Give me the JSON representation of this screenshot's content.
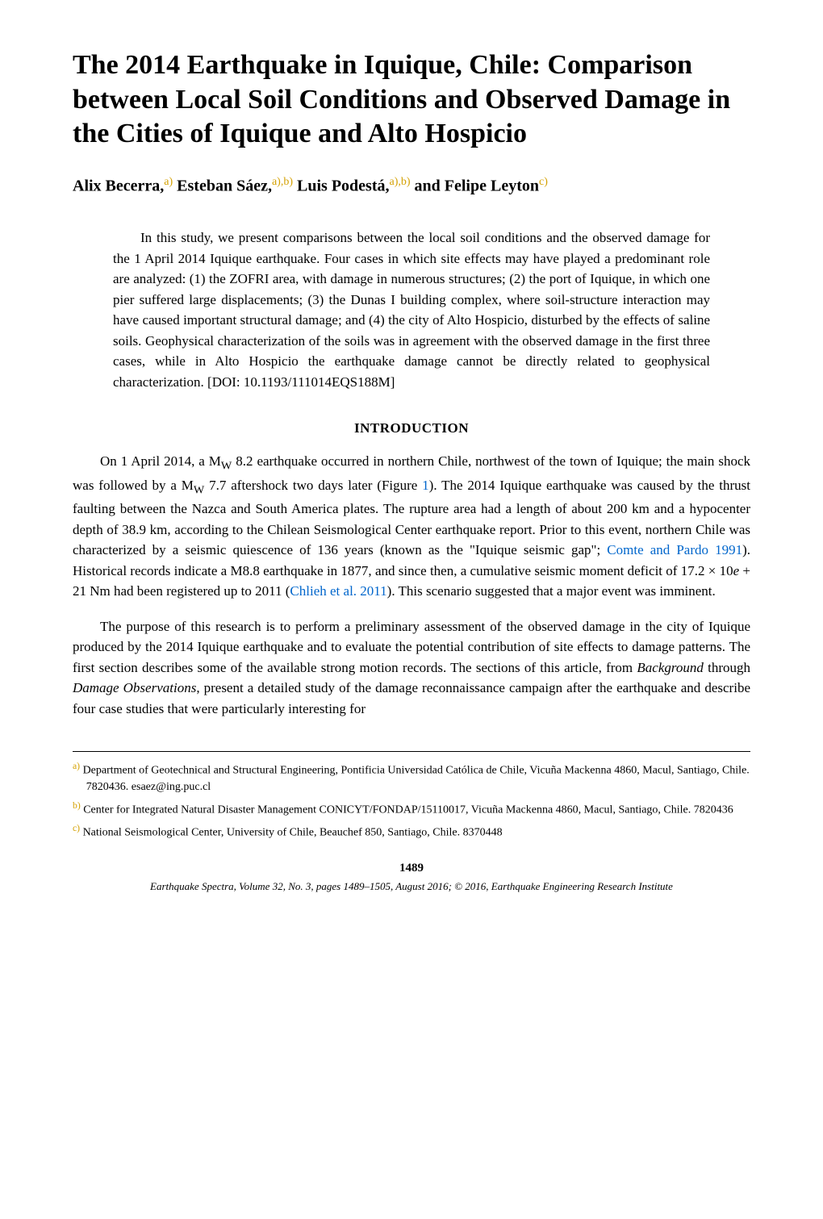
{
  "title": "The 2014 Earthquake in Iquique, Chile: Comparison between Local Soil Conditions and Observed Damage in the Cities of Iquique and Alto Hospicio",
  "authors": {
    "a1_name": "Alix Becerra,",
    "a1_aff": "a)",
    "a2_name": " Esteban Sáez,",
    "a2_aff": "a),b)",
    "a3_name": " Luis Podestá,",
    "a3_aff": "a),b)",
    "a4_pre": " and ",
    "a4_name": "Felipe Leyton",
    "a4_aff": "c)"
  },
  "abstract": "In this study, we present comparisons between the local soil conditions and the observed damage for the 1 April 2014 Iquique earthquake. Four cases in which site effects may have played a predominant role are analyzed: (1) the ZOFRI area, with damage in numerous structures; (2) the port of Iquique, in which one pier suffered large displacements; (3) the Dunas I building complex, where soil-structure interaction may have caused important structural damage; and (4) the city of Alto Hospicio, disturbed by the effects of saline soils. Geophysical characterization of the soils was in agreement with the observed damage in the first three cases, while in Alto Hospicio the earthquake damage cannot be directly related to geophysical characterization. [DOI: 10.1193/111014EQS188M]",
  "section_heading": "INTRODUCTION",
  "para1_pre": "On 1 April 2014, a M",
  "para1_sub1": "W",
  "para1_mid1": " 8.2 earthquake occurred in northern Chile, northwest of the town of Iquique; the main shock was followed by a M",
  "para1_sub2": "W",
  "para1_mid2": " 7.7 aftershock two days later (Figure ",
  "para1_fig": "1",
  "para1_mid3": "). The 2014 Iquique earthquake was caused by the thrust faulting between the Nazca and South America plates. The rupture area had a length of about 200 km and a hypocenter depth of 38.9 km, according to the Chilean Seismological Center earthquake report. Prior to this event, northern Chile was characterized by a seismic quiescence of 136 years (known as the \"Iquique seismic gap\"; ",
  "para1_ref1": "Comte and Pardo 1991",
  "para1_mid4": "). Historical records indicate a M8.8 earthquake in 1877, and since then, a cumulative seismic moment deficit of 17.2 × 10",
  "para1_exp": "e",
  "para1_mid5": " + 21 Nm had been registered up to 2011 (",
  "para1_ref2": "Chlieh et al. 2011",
  "para1_end": "). This scenario suggested that a major event was imminent.",
  "para2_pre": "The purpose of this research is to perform a preliminary assessment of the observed damage in the city of Iquique produced by the 2014 Iquique earthquake and to evaluate the potential contribution of site effects to damage patterns. The first section describes some of the available strong motion records. The sections of this article, from ",
  "para2_i1": "Background",
  "para2_mid": " through ",
  "para2_i2": "Damage Observations",
  "para2_end": ", present a detailed study of the damage reconnaissance campaign after the earthquake and describe four case studies that were particularly interesting for",
  "footnotes": {
    "a_mark": "a)",
    "a_text": " Department of Geotechnical and Structural Engineering, Pontificia Universidad Católica de Chile, Vicuña Mackenna 4860, Macul, Santiago, Chile. 7820436. esaez@ing.puc.cl",
    "b_mark": "b)",
    "b_text": " Center for Integrated Natural Disaster Management CONICYT/FONDAP/15110017, Vicuña Mackenna 4860, Macul, Santiago, Chile. 7820436",
    "c_mark": "c)",
    "c_text": " National Seismological Center, University of Chile, Beauchef 850, Santiago, Chile. 8370448"
  },
  "page_number": "1489",
  "journal_footer": {
    "name": "Earthquake Spectra",
    "rest": ", Volume 32, No. 3, pages 1489–1505, August 2016; © 2016, Earthquake Engineering Research Institute"
  },
  "colors": {
    "text": "#000000",
    "bg": "#ffffff",
    "sup_color": "#d4a000",
    "link_color": "#0066cc"
  }
}
